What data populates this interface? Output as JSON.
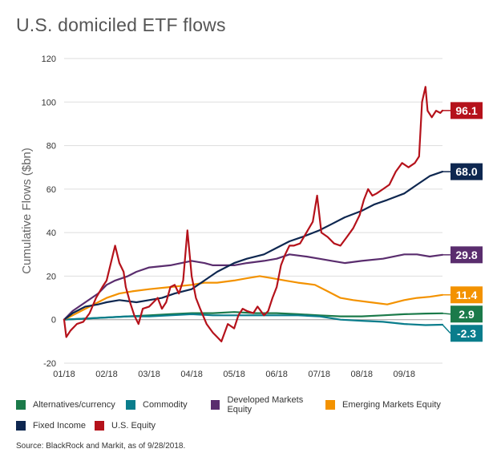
{
  "chart_data": {
    "type": "line",
    "title": "U.S. domiciled ETF flows",
    "ylabel": "Cumulative Flows ($bn)",
    "xlabel": "",
    "ylim": [
      -20,
      120
    ],
    "yticks": [
      -20,
      0,
      20,
      40,
      60,
      80,
      100,
      120
    ],
    "xticks": [
      "01/18",
      "02/18",
      "03/18",
      "04/18",
      "05/18",
      "06/18",
      "07/18",
      "08/18",
      "09/18"
    ],
    "x_range": [
      0,
      8.9
    ],
    "grid": "horizontal",
    "legend_position": "bottom",
    "series": [
      {
        "name": "Alternatives/currency",
        "color": "#1b7a4a",
        "end_label": "2.9",
        "points": [
          [
            0,
            0
          ],
          [
            0.5,
            0.5
          ],
          [
            1,
            1
          ],
          [
            1.5,
            1.5
          ],
          [
            2,
            2
          ],
          [
            2.5,
            2.5
          ],
          [
            3,
            3
          ],
          [
            3.5,
            3
          ],
          [
            4,
            3.5
          ],
          [
            4.5,
            3
          ],
          [
            5,
            3
          ],
          [
            5.5,
            2.5
          ],
          [
            6,
            2
          ],
          [
            6.5,
            1.5
          ],
          [
            7,
            1.5
          ],
          [
            7.5,
            2
          ],
          [
            8,
            2.5
          ],
          [
            8.5,
            2.8
          ],
          [
            8.9,
            2.9
          ]
        ]
      },
      {
        "name": "Commodity",
        "color": "#0a7d8c",
        "end_label": "-2.3",
        "points": [
          [
            0,
            0
          ],
          [
            0.5,
            0.5
          ],
          [
            1,
            1
          ],
          [
            1.5,
            1.5
          ],
          [
            2,
            1.5
          ],
          [
            2.5,
            2
          ],
          [
            3,
            2.5
          ],
          [
            3.5,
            2
          ],
          [
            4,
            2
          ],
          [
            4.5,
            2
          ],
          [
            5,
            2
          ],
          [
            5.5,
            2
          ],
          [
            6,
            1.5
          ],
          [
            6.5,
            0
          ],
          [
            7,
            -0.5
          ],
          [
            7.5,
            -1
          ],
          [
            8,
            -2
          ],
          [
            8.5,
            -2.5
          ],
          [
            8.9,
            -2.3
          ]
        ]
      },
      {
        "name": "Developed Markets Equity",
        "color": "#5a2d6e",
        "end_label": "29.8",
        "points": [
          [
            0,
            0
          ],
          [
            0.2,
            4
          ],
          [
            0.5,
            8
          ],
          [
            0.8,
            12
          ],
          [
            1,
            16
          ],
          [
            1.2,
            18
          ],
          [
            1.5,
            20
          ],
          [
            1.7,
            22
          ],
          [
            2,
            24
          ],
          [
            2.5,
            25
          ],
          [
            3,
            27
          ],
          [
            3.3,
            26
          ],
          [
            3.5,
            25
          ],
          [
            4,
            25
          ],
          [
            4.3,
            26
          ],
          [
            4.7,
            27
          ],
          [
            5,
            28
          ],
          [
            5.3,
            30
          ],
          [
            5.7,
            29
          ],
          [
            6,
            28
          ],
          [
            6.3,
            27
          ],
          [
            6.6,
            26
          ],
          [
            7,
            27
          ],
          [
            7.5,
            28
          ],
          [
            8,
            30
          ],
          [
            8.3,
            30
          ],
          [
            8.6,
            29
          ],
          [
            8.9,
            29.8
          ]
        ]
      },
      {
        "name": "Emerging Markets Equity",
        "color": "#f39200",
        "end_label": "11.4",
        "points": [
          [
            0,
            0
          ],
          [
            0.2,
            2
          ],
          [
            0.5,
            5
          ],
          [
            0.8,
            8
          ],
          [
            1,
            10
          ],
          [
            1.3,
            12
          ],
          [
            1.6,
            13
          ],
          [
            2,
            14
          ],
          [
            2.5,
            15
          ],
          [
            3,
            16
          ],
          [
            3.3,
            17
          ],
          [
            3.6,
            17
          ],
          [
            4,
            18
          ],
          [
            4.3,
            19
          ],
          [
            4.6,
            20
          ],
          [
            4.9,
            19
          ],
          [
            5.2,
            18
          ],
          [
            5.5,
            17
          ],
          [
            5.9,
            16
          ],
          [
            6.2,
            13
          ],
          [
            6.5,
            10
          ],
          [
            6.8,
            9
          ],
          [
            7.2,
            8
          ],
          [
            7.6,
            7
          ],
          [
            8,
            9
          ],
          [
            8.3,
            10
          ],
          [
            8.6,
            10.5
          ],
          [
            8.9,
            11.4
          ]
        ]
      },
      {
        "name": "Fixed Income",
        "color": "#0e2750",
        "end_label": "68.0",
        "points": [
          [
            0,
            0
          ],
          [
            0.2,
            3
          ],
          [
            0.5,
            6
          ],
          [
            0.8,
            7
          ],
          [
            1,
            8
          ],
          [
            1.3,
            9
          ],
          [
            1.7,
            8
          ],
          [
            2,
            9
          ],
          [
            2.3,
            10
          ],
          [
            2.6,
            12
          ],
          [
            3,
            14
          ],
          [
            3.3,
            18
          ],
          [
            3.6,
            22
          ],
          [
            4,
            26
          ],
          [
            4.3,
            28
          ],
          [
            4.7,
            30
          ],
          [
            5,
            33
          ],
          [
            5.3,
            36
          ],
          [
            5.6,
            38
          ],
          [
            6,
            41
          ],
          [
            6.3,
            44
          ],
          [
            6.6,
            47
          ],
          [
            7,
            50
          ],
          [
            7.3,
            53
          ],
          [
            7.6,
            55
          ],
          [
            8,
            58
          ],
          [
            8.3,
            62
          ],
          [
            8.6,
            66
          ],
          [
            8.9,
            68
          ]
        ]
      },
      {
        "name": "U.S. Equity",
        "color": "#b5121b",
        "end_label": "96.1",
        "points": [
          [
            0,
            0
          ],
          [
            0.05,
            -8
          ],
          [
            0.15,
            -5
          ],
          [
            0.3,
            -2
          ],
          [
            0.45,
            -1
          ],
          [
            0.6,
            3
          ],
          [
            0.75,
            10
          ],
          [
            0.9,
            15
          ],
          [
            1,
            18
          ],
          [
            1.1,
            26
          ],
          [
            1.2,
            34
          ],
          [
            1.3,
            26
          ],
          [
            1.4,
            22
          ],
          [
            1.45,
            15
          ],
          [
            1.55,
            8
          ],
          [
            1.65,
            2
          ],
          [
            1.75,
            -2
          ],
          [
            1.85,
            5
          ],
          [
            2,
            6
          ],
          [
            2.1,
            8
          ],
          [
            2.2,
            10
          ],
          [
            2.3,
            5
          ],
          [
            2.4,
            8
          ],
          [
            2.5,
            15
          ],
          [
            2.6,
            16
          ],
          [
            2.7,
            12
          ],
          [
            2.8,
            18
          ],
          [
            2.9,
            41
          ],
          [
            3,
            20
          ],
          [
            3.1,
            10
          ],
          [
            3.2,
            5
          ],
          [
            3.35,
            -2
          ],
          [
            3.5,
            -6
          ],
          [
            3.6,
            -8
          ],
          [
            3.7,
            -10
          ],
          [
            3.85,
            -2
          ],
          [
            4,
            -4
          ],
          [
            4.1,
            2
          ],
          [
            4.2,
            5
          ],
          [
            4.3,
            4
          ],
          [
            4.45,
            3
          ],
          [
            4.55,
            6
          ],
          [
            4.7,
            2
          ],
          [
            4.8,
            4
          ],
          [
            4.9,
            10
          ],
          [
            5.0,
            15
          ],
          [
            5.1,
            25
          ],
          [
            5.2,
            30
          ],
          [
            5.3,
            34
          ],
          [
            5.4,
            34
          ],
          [
            5.55,
            35
          ],
          [
            5.7,
            40
          ],
          [
            5.85,
            45
          ],
          [
            5.95,
            57
          ],
          [
            6.05,
            40
          ],
          [
            6.2,
            38
          ],
          [
            6.35,
            35
          ],
          [
            6.5,
            34
          ],
          [
            6.65,
            38
          ],
          [
            6.8,
            42
          ],
          [
            6.95,
            48
          ],
          [
            7.05,
            55
          ],
          [
            7.15,
            60
          ],
          [
            7.25,
            57
          ],
          [
            7.35,
            58
          ],
          [
            7.5,
            60
          ],
          [
            7.65,
            62
          ],
          [
            7.8,
            68
          ],
          [
            7.95,
            72
          ],
          [
            8.1,
            70
          ],
          [
            8.25,
            72
          ],
          [
            8.35,
            75
          ],
          [
            8.42,
            100
          ],
          [
            8.5,
            107
          ],
          [
            8.55,
            96
          ],
          [
            8.65,
            93
          ],
          [
            8.75,
            96
          ],
          [
            8.85,
            95
          ],
          [
            8.9,
            96.1
          ]
        ]
      }
    ],
    "legend": [
      {
        "label": "Alternatives/currency",
        "color": "#1b7a4a"
      },
      {
        "label": "Commodity",
        "color": "#0a7d8c"
      },
      {
        "label": "Developed Markets Equity",
        "color": "#5a2d6e"
      },
      {
        "label": "Emerging Markets Equity",
        "color": "#f39200"
      },
      {
        "label": "Fixed Income",
        "color": "#0e2750"
      },
      {
        "label": "U.S. Equity",
        "color": "#b5121b"
      }
    ]
  },
  "source_note": "Source: BlackRock and Markit, as of 9/28/2018."
}
